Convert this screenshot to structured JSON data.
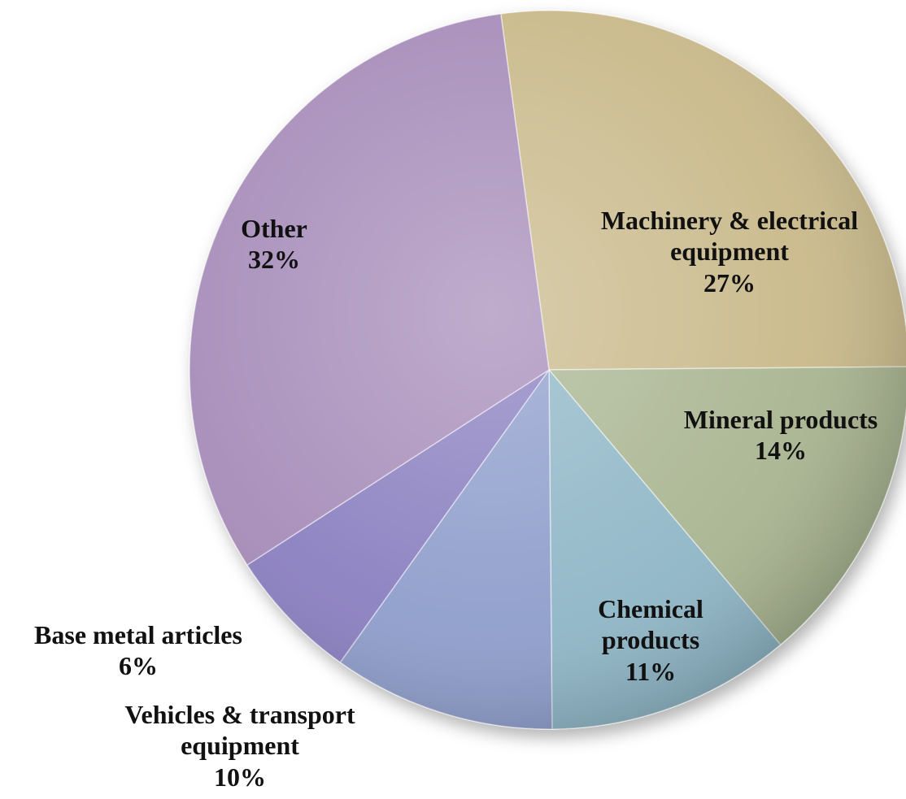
{
  "chart_data": {
    "type": "pie",
    "categories": [
      "Machinery & electrical equipment",
      "Mineral products",
      "Chemical products",
      "Vehicles & transport equipment",
      "Base metal articles",
      "Other"
    ],
    "values": [
      27,
      14,
      11,
      10,
      6,
      32
    ],
    "value_labels": [
      "27%",
      "14%",
      "11%",
      "10%",
      "6%",
      "32%"
    ],
    "colors": [
      "#c9b98a",
      "#a9b591",
      "#8fb6c6",
      "#8e9dcb",
      "#8a7fc0",
      "#a68cb9"
    ]
  }
}
